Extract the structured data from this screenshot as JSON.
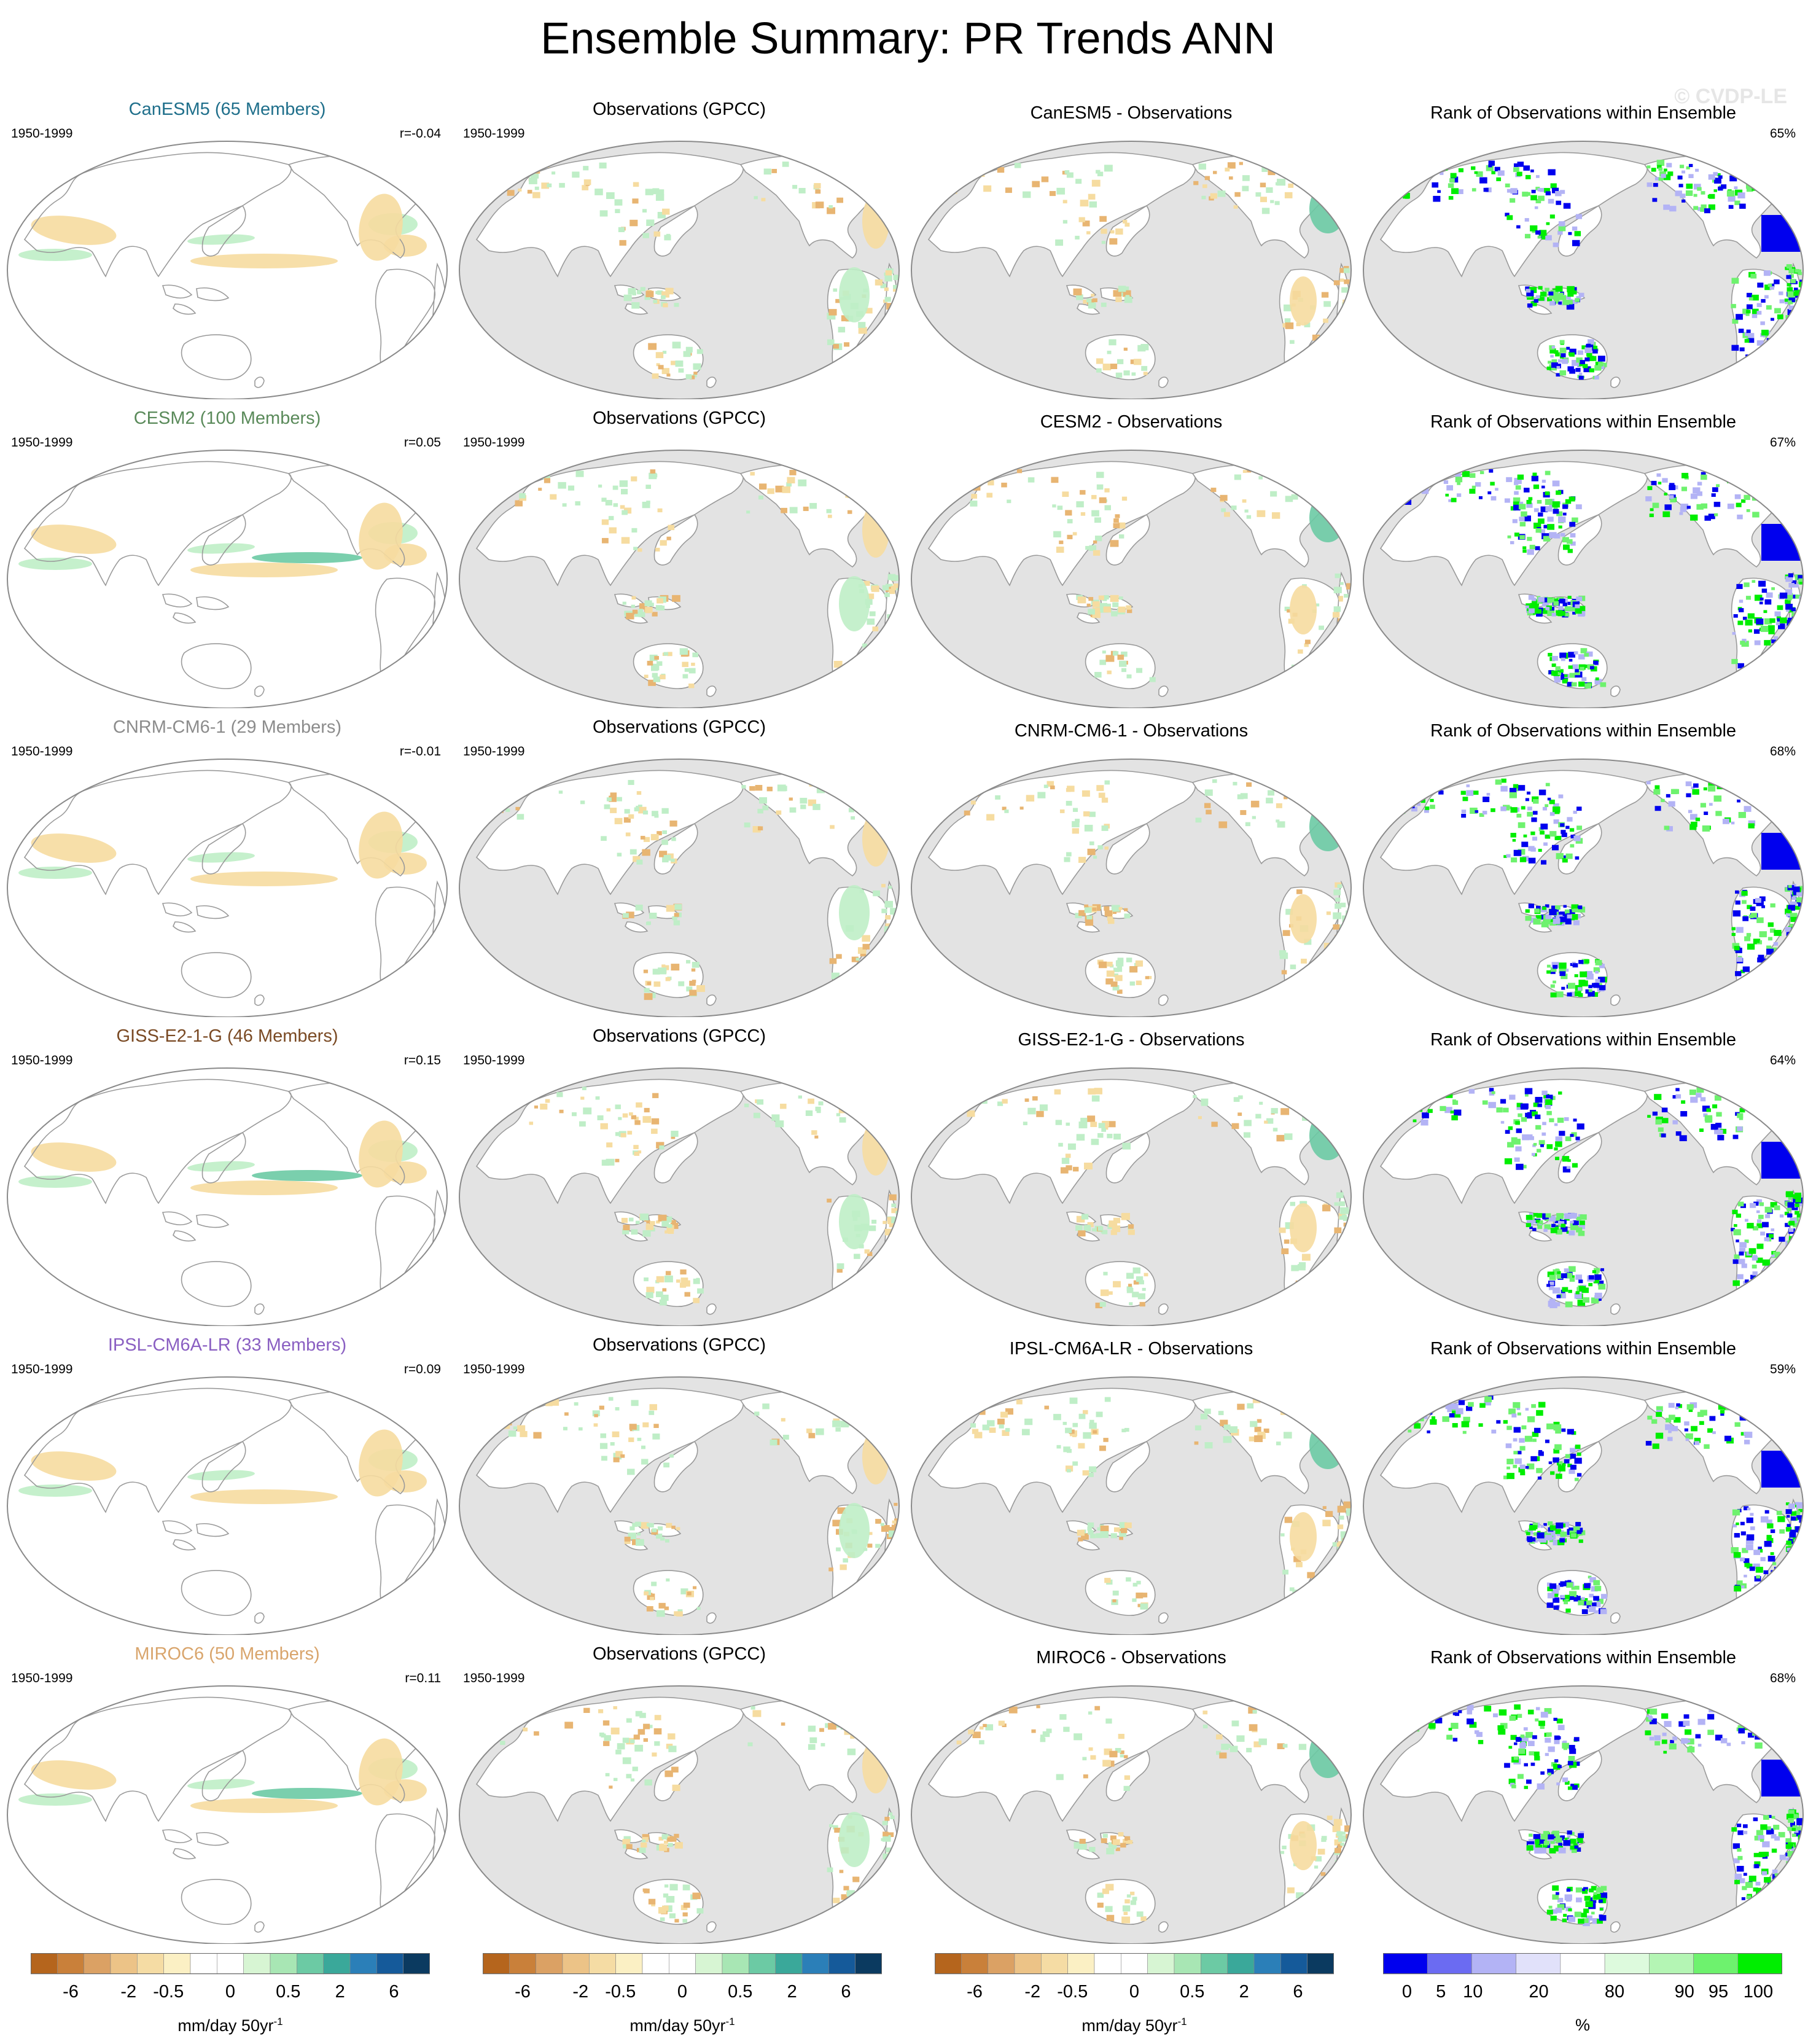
{
  "title": "Ensemble Summary: PR Trends ANN",
  "watermark": "© CVDP-LE",
  "rows": [
    {
      "model": "CanESM5 (65 Members)",
      "model_color": "#1f6f8b",
      "period": "1950-1999",
      "corr": "r=-0.04",
      "obs_title": "Observations (GPCC)",
      "obs_period": "1950-1999",
      "diff_title": "CanESM5 - Observations",
      "rank_title": "Rank of Observations within Ensemble",
      "rank_pct": "65%"
    },
    {
      "model": "CESM2 (100 Members)",
      "model_color": "#5a8a5a",
      "period": "1950-1999",
      "corr": "r=0.05",
      "obs_title": "Observations (GPCC)",
      "obs_period": "1950-1999",
      "diff_title": "CESM2 - Observations",
      "rank_title": "Rank of Observations within Ensemble",
      "rank_pct": "67%"
    },
    {
      "model": "CNRM-CM6-1 (29 Members)",
      "model_color": "#8c8c8c",
      "period": "1950-1999",
      "corr": "r=-0.01",
      "obs_title": "Observations (GPCC)",
      "obs_period": "1950-1999",
      "diff_title": "CNRM-CM6-1 - Observations",
      "rank_title": "Rank of Observations within Ensemble",
      "rank_pct": "68%"
    },
    {
      "model": "GISS-E2-1-G (46 Members)",
      "model_color": "#7a4a24",
      "period": "1950-1999",
      "corr": "r=0.15",
      "obs_title": "Observations (GPCC)",
      "obs_period": "1950-1999",
      "diff_title": "GISS-E2-1-G - Observations",
      "rank_title": "Rank of Observations within Ensemble",
      "rank_pct": "64%"
    },
    {
      "model": "IPSL-CM6A-LR (33 Members)",
      "model_color": "#8a5fc2",
      "period": "1950-1999",
      "corr": "r=0.09",
      "obs_title": "Observations (GPCC)",
      "obs_period": "1950-1999",
      "diff_title": "IPSL-CM6A-LR - Observations",
      "rank_title": "Rank of Observations within Ensemble",
      "rank_pct": "59%"
    },
    {
      "model": "MIROC6 (50 Members)",
      "model_color": "#d9a56c",
      "period": "1950-1999",
      "corr": "r=0.11",
      "obs_title": "Observations (GPCC)",
      "obs_period": "1950-1999",
      "diff_title": "MIROC6 - Observations",
      "rank_title": "Rank of Observations within Ensemble",
      "rank_pct": "68%"
    }
  ],
  "trend_colorbar": {
    "colors": [
      "#b5651d",
      "#c9803a",
      "#dba164",
      "#ecc387",
      "#f5dca4",
      "#fbf0c4",
      "#ffffff",
      "#ffffff",
      "#d7f5d3",
      "#a8e6b4",
      "#6ccaa4",
      "#3aa89a",
      "#2b7fb8",
      "#155a9a",
      "#0b3a60"
    ],
    "tick_labels": [
      "-6",
      "-2",
      "-0.5",
      "0",
      "0.5",
      "2",
      "6"
    ],
    "label": "mm/day 50yr",
    "label_sup": "-1"
  },
  "rank_colorbar": {
    "colors": [
      "#0000ee",
      "#6b6bf2",
      "#b3b3f5",
      "#e1e1fa",
      "#ffffff",
      "#ddfadd",
      "#b4f5b4",
      "#6ef26e",
      "#00ee00"
    ],
    "tick_labels": [
      "0",
      "5",
      "10",
      "20",
      "80",
      "90",
      "95",
      "100"
    ],
    "label": "%"
  },
  "palette": {
    "ocean_gray": "#e3e3e3",
    "land_white": "#ffffff",
    "coast": "#9a9a9a",
    "dry": "#f6dca0",
    "dry_strong": "#e8b572",
    "wet": "#bfeec7",
    "wet_strong": "#6ccaa4",
    "rank_low": "#0000ee",
    "rank_high": "#00ee00"
  }
}
